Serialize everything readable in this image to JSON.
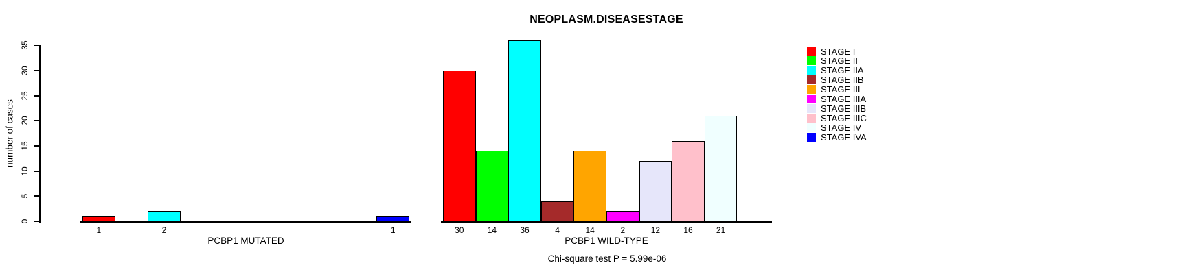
{
  "chart_data": {
    "type": "bar",
    "title": "NEOPLASM.DISEASESTAGE",
    "xlabel": "",
    "ylabel": "number of cases",
    "ylim": [
      0,
      35
    ],
    "yticks": [
      0,
      5,
      10,
      15,
      20,
      25,
      30,
      35
    ],
    "grid": false,
    "legend_position": "right",
    "categories": [
      "STAGE I",
      "STAGE II",
      "STAGE IIA",
      "STAGE IIB",
      "STAGE III",
      "STAGE IIIA",
      "STAGE IIIB",
      "STAGE IIIC",
      "STAGE IV",
      "STAGE IVA"
    ],
    "colors": [
      "#FF0000",
      "#00FF00",
      "#00FFFF",
      "#A52A2A",
      "#FFA500",
      "#FF00FF",
      "#E6E6FA",
      "#FFC0CB",
      "#F0FFFF",
      "#0000FF"
    ],
    "groups": [
      {
        "label": "PCBP1 MUTATED",
        "values": [
          1,
          0,
          2,
          0,
          0,
          0,
          0,
          0,
          0,
          1
        ]
      },
      {
        "label": "PCBP1 WILD-TYPE",
        "values": [
          30,
          14,
          36,
          4,
          14,
          2,
          12,
          16,
          21,
          0
        ]
      }
    ],
    "bar_labels_shown_for_nonzero_only": true,
    "annotation": "Chi-square test P = 5.99e-06"
  },
  "legend": {
    "items": [
      {
        "label": "STAGE I",
        "color": "#FF0000"
      },
      {
        "label": "STAGE II",
        "color": "#00FF00"
      },
      {
        "label": "STAGE IIA",
        "color": "#00FFFF"
      },
      {
        "label": "STAGE IIB",
        "color": "#A52A2A"
      },
      {
        "label": "STAGE III",
        "color": "#FFA500"
      },
      {
        "label": "STAGE IIIA",
        "color": "#FF00FF"
      },
      {
        "label": "STAGE IIIB",
        "color": "#E6E6FA"
      },
      {
        "label": "STAGE IIIC",
        "color": "#FFC0CB"
      },
      {
        "label": "STAGE IV",
        "color": "#F0FFFF"
      },
      {
        "label": "STAGE IVA",
        "color": "#0000FF"
      }
    ]
  }
}
